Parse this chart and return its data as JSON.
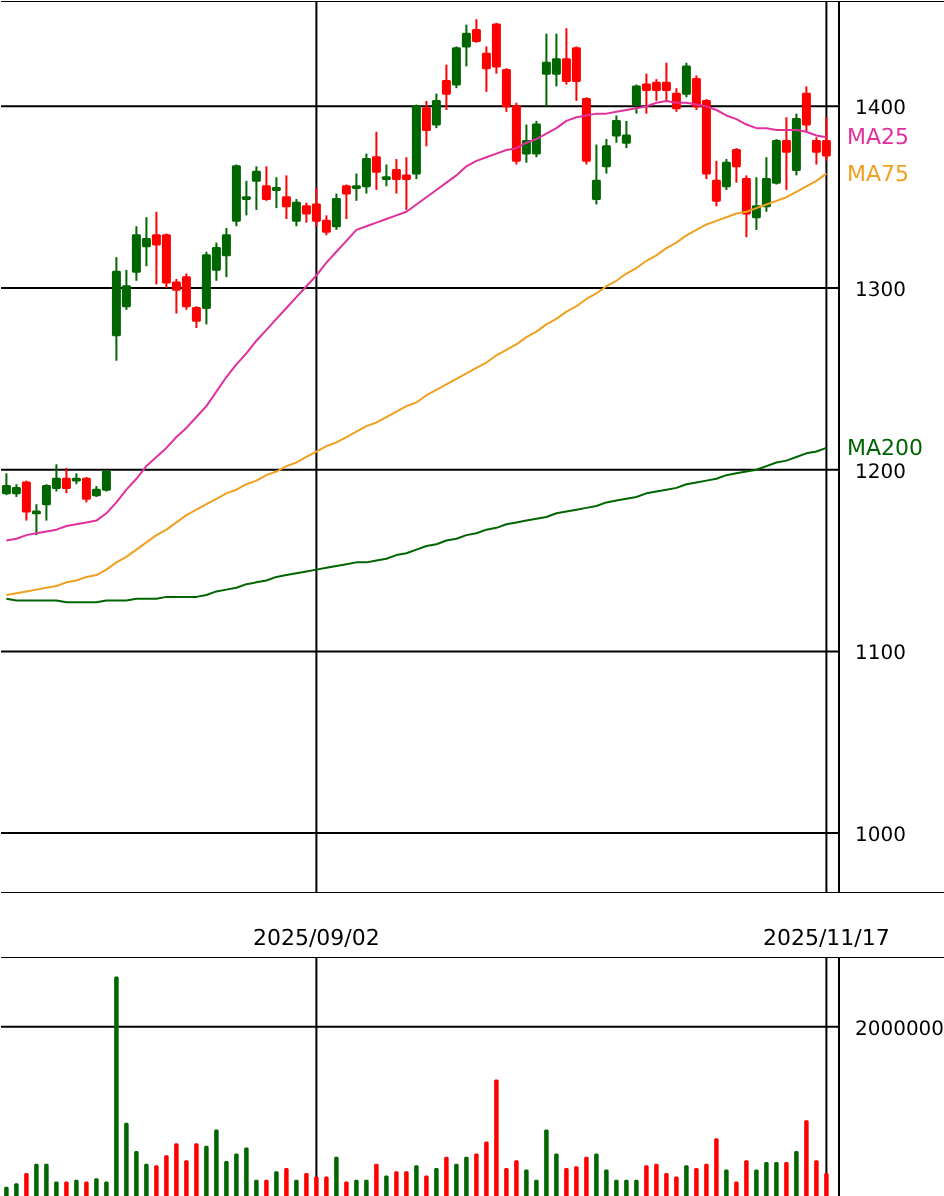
{
  "chart_data": [
    {
      "type": "candlestick",
      "categories": [
        null,
        null,
        null,
        null,
        null,
        null,
        null,
        null,
        null,
        null,
        null,
        null,
        null,
        null,
        null,
        null,
        null,
        null,
        null,
        null,
        null,
        null,
        null,
        null,
        null,
        null,
        null,
        null,
        null,
        null,
        null,
        "2025/09/02",
        null,
        null,
        null,
        null,
        null,
        null,
        null,
        null,
        null,
        null,
        null,
        null,
        null,
        null,
        null,
        null,
        null,
        null,
        null,
        null,
        null,
        null,
        null,
        null,
        null,
        null,
        null,
        null,
        null,
        null,
        null,
        null,
        null,
        null,
        null,
        null,
        null,
        null,
        null,
        null,
        null,
        null,
        null,
        null,
        null,
        null,
        null,
        null,
        null,
        null,
        "2025/11/17"
      ],
      "ohlc": [
        [
          1187,
          1198,
          1186,
          1191
        ],
        [
          1187,
          1192,
          1185,
          1190
        ],
        [
          1193,
          1194,
          1172,
          1177
        ],
        [
          1176,
          1181,
          1164,
          1177
        ],
        [
          1181,
          1192,
          1172,
          1191
        ],
        [
          1190,
          1203,
          1188,
          1195
        ],
        [
          1195,
          1201,
          1187,
          1190
        ],
        [
          1194,
          1198,
          1192,
          1195
        ],
        [
          1195,
          1196,
          1182,
          1184
        ],
        [
          1186,
          1191,
          1185,
          1189
        ],
        [
          1189,
          1200,
          1188,
          1199
        ],
        [
          1274,
          1317,
          1260,
          1309
        ],
        [
          1290,
          1310,
          1288,
          1301
        ],
        [
          1309,
          1334,
          1304,
          1329
        ],
        [
          1323,
          1339,
          1312,
          1327
        ],
        [
          1329,
          1342,
          1302,
          1324
        ],
        [
          1329,
          1330,
          1300,
          1303
        ],
        [
          1303,
          1305,
          1286,
          1299
        ],
        [
          1306,
          1308,
          1288,
          1290
        ],
        [
          1289,
          1290,
          1278,
          1282
        ],
        [
          1289,
          1320,
          1280,
          1318
        ],
        [
          1310,
          1325,
          1304,
          1322
        ],
        [
          1318,
          1333,
          1306,
          1329
        ],
        [
          1337,
          1368,
          1334,
          1367
        ],
        [
          1349,
          1359,
          1340,
          1350
        ],
        [
          1359,
          1367,
          1343,
          1364
        ],
        [
          1356,
          1367,
          1348,
          1349
        ],
        [
          1354,
          1361,
          1344,
          1355
        ],
        [
          1350,
          1362,
          1338,
          1345
        ],
        [
          1337,
          1349,
          1334,
          1347
        ],
        [
          1345,
          1347,
          1336,
          1341
        ],
        [
          1346,
          1355,
          1334,
          1337
        ],
        [
          1337,
          1340,
          1329,
          1331
        ],
        [
          1334,
          1352,
          1332,
          1349
        ],
        [
          1356,
          1357,
          1338,
          1352
        ],
        [
          1355,
          1363,
          1348,
          1356
        ],
        [
          1356,
          1374,
          1352,
          1371
        ],
        [
          1372,
          1386,
          1354,
          1364
        ],
        [
          1360,
          1368,
          1356,
          1361
        ],
        [
          1365,
          1371,
          1352,
          1360
        ],
        [
          1362,
          1372,
          1343,
          1360
        ],
        [
          1363,
          1401,
          1360,
          1400
        ],
        [
          1399,
          1403,
          1378,
          1387
        ],
        [
          1390,
          1407,
          1388,
          1403
        ],
        [
          1414,
          1423,
          1398,
          1407
        ],
        [
          1412,
          1433,
          1410,
          1432
        ],
        [
          1433,
          1445,
          1422,
          1440
        ],
        [
          1442,
          1448,
          1435,
          1436
        ],
        [
          1429,
          1433,
          1408,
          1421
        ],
        [
          1445,
          1446,
          1418,
          1422
        ],
        [
          1420,
          1421,
          1397,
          1400
        ],
        [
          1400,
          1402,
          1368,
          1370
        ],
        [
          1374,
          1390,
          1369,
          1381
        ],
        [
          1374,
          1392,
          1372,
          1390
        ],
        [
          1418,
          1440,
          1400,
          1424
        ],
        [
          1418,
          1440,
          1411,
          1426
        ],
        [
          1426,
          1443,
          1412,
          1414
        ],
        [
          1432,
          1433,
          1403,
          1414
        ],
        [
          1404,
          1405,
          1368,
          1370
        ],
        [
          1349,
          1379,
          1346,
          1359
        ],
        [
          1367,
          1382,
          1363,
          1378
        ],
        [
          1384,
          1395,
          1380,
          1392
        ],
        [
          1380,
          1392,
          1377,
          1384
        ],
        [
          1401,
          1412,
          1396,
          1411
        ],
        [
          1412,
          1418,
          1396,
          1409
        ],
        [
          1413,
          1415,
          1403,
          1409
        ],
        [
          1413,
          1424,
          1403,
          1409
        ],
        [
          1407,
          1410,
          1397,
          1399
        ],
        [
          1407,
          1424,
          1405,
          1422
        ],
        [
          1415,
          1417,
          1398,
          1400
        ],
        [
          1403,
          1404,
          1360,
          1363
        ],
        [
          1359,
          1370,
          1345,
          1348
        ],
        [
          1356,
          1371,
          1354,
          1369
        ],
        [
          1376,
          1377,
          1358,
          1367
        ],
        [
          1360,
          1362,
          1328,
          1341
        ],
        [
          1339,
          1361,
          1332,
          1345
        ],
        [
          1345,
          1372,
          1342,
          1360
        ],
        [
          1358,
          1382,
          1357,
          1381
        ],
        [
          1381,
          1394,
          1354,
          1375
        ],
        [
          1365,
          1396,
          1362,
          1393
        ],
        [
          1407,
          1411,
          1386,
          1390
        ],
        [
          1381,
          1383,
          1368,
          1375
        ],
        [
          1381,
          1394,
          1370,
          1373
        ]
      ],
      "colors": [
        "#006600",
        "#006600",
        "#ff0000",
        "#006600",
        "#006600",
        "#006600",
        "#ff0000",
        "#006600",
        "#ff0000",
        "#006600",
        "#006600",
        "#006600",
        "#006600",
        "#006600",
        "#006600",
        "#ff0000",
        "#ff0000",
        "#ff0000",
        "#ff0000",
        "#ff0000",
        "#006600",
        "#006600",
        "#006600",
        "#006600",
        "#006600",
        "#006600",
        "#ff0000",
        "#006600",
        "#ff0000",
        "#006600",
        "#ff0000",
        "#ff0000",
        "#ff0000",
        "#006600",
        "#ff0000",
        "#006600",
        "#006600",
        "#ff0000",
        "#006600",
        "#ff0000",
        "#ff0000",
        "#006600",
        "#ff0000",
        "#006600",
        "#ff0000",
        "#006600",
        "#006600",
        "#ff0000",
        "#ff0000",
        "#ff0000",
        "#ff0000",
        "#ff0000",
        "#006600",
        "#006600",
        "#006600",
        "#006600",
        "#ff0000",
        "#ff0000",
        "#ff0000",
        "#006600",
        "#006600",
        "#006600",
        "#006600",
        "#006600",
        "#ff0000",
        "#ff0000",
        "#ff0000",
        "#ff0000",
        "#006600",
        "#ff0000",
        "#ff0000",
        "#ff0000",
        "#006600",
        "#ff0000",
        "#ff0000",
        "#006600",
        "#006600",
        "#006600",
        "#ff0000",
        "#006600",
        "#ff0000",
        "#ff0000",
        "#ff0000"
      ],
      "series": [
        {
          "name": "MA25",
          "type": "line",
          "color": "#e0309c",
          "values": [
            1161,
            1162,
            1164,
            1165,
            1166,
            1167,
            1169,
            1170,
            1171,
            1172,
            1176,
            1182,
            1189,
            1195,
            1202,
            1207,
            1212,
            1218,
            1223,
            1229,
            1235,
            1243,
            1251,
            1258,
            1264,
            1271,
            1277,
            1283,
            1289,
            1295,
            1301,
            1307,
            1314,
            1320,
            1326,
            1332,
            1334,
            1336,
            1338,
            1340,
            1342,
            1346,
            1350,
            1354,
            1358,
            1362,
            1367,
            1370,
            1372,
            1374,
            1376,
            1377,
            1380,
            1382,
            1385,
            1388,
            1392,
            1394,
            1395,
            1396,
            1396,
            1397,
            1398,
            1399,
            1400,
            1402,
            1403,
            1402,
            1402,
            1401,
            1400,
            1398,
            1395,
            1393,
            1390,
            1388,
            1388,
            1387,
            1387,
            1387,
            1386,
            1384,
            1383
          ]
        },
        {
          "name": "MA75",
          "type": "line",
          "color": "#f0a020",
          "values": [
            1131,
            1132,
            1133,
            1134,
            1135,
            1136,
            1138,
            1139,
            1141,
            1142,
            1145,
            1149,
            1152,
            1156,
            1160,
            1164,
            1167,
            1171,
            1175,
            1178,
            1181,
            1184,
            1187,
            1189,
            1192,
            1194,
            1197,
            1199,
            1202,
            1204,
            1207,
            1210,
            1213,
            1215,
            1218,
            1221,
            1224,
            1226,
            1229,
            1232,
            1235,
            1237,
            1241,
            1244,
            1247,
            1250,
            1253,
            1256,
            1259,
            1263,
            1266,
            1269,
            1273,
            1276,
            1280,
            1283,
            1287,
            1290,
            1294,
            1297,
            1301,
            1304,
            1308,
            1311,
            1315,
            1318,
            1322,
            1325,
            1329,
            1332,
            1335,
            1337,
            1339,
            1341,
            1342,
            1344,
            1346,
            1348,
            1350,
            1353,
            1356,
            1359,
            1363
          ]
        },
        {
          "name": "MA200",
          "type": "line",
          "color": "#006400",
          "values": [
            1129,
            1128,
            1128,
            1128,
            1128,
            1128,
            1127,
            1127,
            1127,
            1127,
            1128,
            1128,
            1128,
            1129,
            1129,
            1129,
            1130,
            1130,
            1130,
            1130,
            1131,
            1133,
            1134,
            1135,
            1137,
            1138,
            1139,
            1141,
            1142,
            1143,
            1144,
            1145,
            1146,
            1147,
            1148,
            1149,
            1149,
            1150,
            1151,
            1153,
            1154,
            1156,
            1158,
            1159,
            1161,
            1162,
            1164,
            1165,
            1167,
            1168,
            1170,
            1171,
            1172,
            1173,
            1174,
            1176,
            1177,
            1178,
            1179,
            1180,
            1182,
            1183,
            1184,
            1185,
            1187,
            1188,
            1189,
            1190,
            1192,
            1193,
            1194,
            1195,
            1197,
            1198,
            1199,
            1200,
            1202,
            1204,
            1205,
            1207,
            1209,
            1210,
            1212
          ]
        }
      ],
      "ylim": [
        967,
        1458
      ],
      "yticks": [
        1000,
        1100,
        1200,
        1300,
        1400
      ],
      "grid": true
    },
    {
      "type": "bar",
      "categories": [
        null,
        null,
        null,
        null,
        null,
        null,
        null,
        null,
        null,
        null,
        null,
        null,
        null,
        null,
        null,
        null,
        null,
        null,
        null,
        null,
        null,
        null,
        null,
        null,
        null,
        null,
        null,
        null,
        null,
        null,
        null,
        "2025/09/02",
        null,
        null,
        null,
        null,
        null,
        null,
        null,
        null,
        null,
        null,
        null,
        null,
        null,
        null,
        null,
        null,
        null,
        null,
        null,
        null,
        null,
        null,
        null,
        null,
        null,
        null,
        null,
        null,
        null,
        null,
        null,
        null,
        null,
        null,
        null,
        null,
        null,
        null,
        null,
        null,
        null,
        null,
        null,
        null,
        null,
        null,
        null,
        null,
        null,
        null,
        "2025/11/17"
      ],
      "values": [
        110000,
        150000,
        270000,
        380000,
        380000,
        170000,
        170000,
        190000,
        170000,
        210000,
        170000,
        2580000,
        860000,
        530000,
        380000,
        360000,
        480000,
        620000,
        420000,
        620000,
        590000,
        780000,
        410000,
        500000,
        570000,
        190000,
        190000,
        290000,
        330000,
        190000,
        270000,
        230000,
        230000,
        460000,
        170000,
        190000,
        190000,
        380000,
        240000,
        290000,
        290000,
        360000,
        240000,
        330000,
        460000,
        380000,
        460000,
        500000,
        640000,
        1370000,
        330000,
        420000,
        310000,
        190000,
        780000,
        500000,
        330000,
        350000,
        460000,
        500000,
        310000,
        190000,
        190000,
        190000,
        360000,
        380000,
        270000,
        230000,
        360000,
        330000,
        380000,
        680000,
        310000,
        170000,
        420000,
        310000,
        400000,
        400000,
        400000,
        530000,
        890000,
        420000,
        270000
      ],
      "colors": [
        "#006600",
        "#006600",
        "#ff0000",
        "#006600",
        "#006600",
        "#006600",
        "#ff0000",
        "#006600",
        "#ff0000",
        "#006600",
        "#006600",
        "#006600",
        "#006600",
        "#006600",
        "#006600",
        "#ff0000",
        "#ff0000",
        "#ff0000",
        "#ff0000",
        "#ff0000",
        "#006600",
        "#006600",
        "#006600",
        "#006600",
        "#006600",
        "#006600",
        "#ff0000",
        "#006600",
        "#ff0000",
        "#006600",
        "#ff0000",
        "#ff0000",
        "#ff0000",
        "#006600",
        "#ff0000",
        "#006600",
        "#006600",
        "#ff0000",
        "#006600",
        "#ff0000",
        "#ff0000",
        "#006600",
        "#ff0000",
        "#006600",
        "#ff0000",
        "#006600",
        "#006600",
        "#ff0000",
        "#ff0000",
        "#ff0000",
        "#ff0000",
        "#ff0000",
        "#006600",
        "#006600",
        "#006600",
        "#006600",
        "#ff0000",
        "#ff0000",
        "#ff0000",
        "#006600",
        "#006600",
        "#006600",
        "#006600",
        "#006600",
        "#ff0000",
        "#ff0000",
        "#ff0000",
        "#ff0000",
        "#006600",
        "#ff0000",
        "#ff0000",
        "#ff0000",
        "#006600",
        "#ff0000",
        "#ff0000",
        "#006600",
        "#006600",
        "#006600",
        "#ff0000",
        "#006600",
        "#ff0000",
        "#ff0000",
        "#ff0000"
      ],
      "ylim": [
        0,
        2820000
      ],
      "yticks": [
        2000000
      ],
      "grid": true,
      "tick_labels": "y"
    }
  ]
}
